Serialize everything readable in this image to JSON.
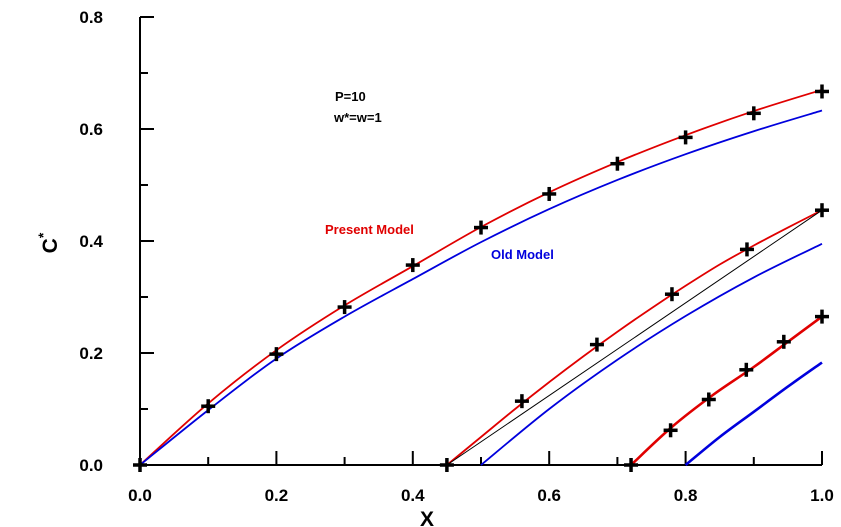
{
  "chart_data": {
    "type": "line",
    "xlabel": "X",
    "ylabel": "C",
    "ylabel_sup": "*",
    "xlim": [
      0.0,
      1.0
    ],
    "ylim": [
      0.0,
      0.8
    ],
    "x_ticks": [
      "0.0",
      "0.2",
      "0.4",
      "0.6",
      "0.8",
      "1.0"
    ],
    "y_ticks": [
      "0.0",
      "0.2",
      "0.4",
      "0.6",
      "0.8"
    ],
    "grid": false,
    "annotations": [
      "P=10",
      "w*=w=1"
    ],
    "series": [
      {
        "name": "Present Model",
        "color": "#e00000",
        "group": 1,
        "x": [
          0.0,
          0.1,
          0.2,
          0.3,
          0.4,
          0.5,
          0.6,
          0.7,
          0.8,
          0.9,
          1.0
        ],
        "y": [
          0.0,
          0.11,
          0.205,
          0.285,
          0.355,
          0.425,
          0.487,
          0.541,
          0.589,
          0.632,
          0.67
        ]
      },
      {
        "name": "Old Model",
        "color": "#0000dd",
        "group": 1,
        "x": [
          0.0,
          0.1,
          0.2,
          0.3,
          0.4,
          0.5,
          0.6,
          0.7,
          0.8,
          0.9,
          1.0
        ],
        "y": [
          0.0,
          0.098,
          0.19,
          0.265,
          0.332,
          0.398,
          0.457,
          0.509,
          0.555,
          0.596,
          0.633
        ]
      },
      {
        "color": "#e00000",
        "group": 2,
        "x": [
          0.45,
          0.5,
          0.55,
          0.6,
          0.65,
          0.7,
          0.75,
          0.8,
          0.85,
          0.9,
          0.95,
          1.0
        ],
        "y": [
          0.0,
          0.05,
          0.1,
          0.148,
          0.194,
          0.238,
          0.28,
          0.32,
          0.358,
          0.392,
          0.424,
          0.455
        ]
      },
      {
        "color": "#000000",
        "group": 2,
        "x": [
          0.45,
          1.0
        ],
        "y": [
          0.0,
          0.455
        ]
      },
      {
        "color": "#0000dd",
        "group": 2,
        "x": [
          0.5,
          0.6,
          0.7,
          0.8,
          0.9,
          1.0
        ],
        "y": [
          0.0,
          0.1,
          0.188,
          0.266,
          0.335,
          0.395
        ]
      },
      {
        "color": "#e00000",
        "group": 3,
        "x": [
          0.72,
          0.78,
          0.84,
          0.9,
          0.95,
          1.0
        ],
        "y": [
          0.0,
          0.068,
          0.125,
          0.175,
          0.22,
          0.265
        ]
      },
      {
        "color": "#0000dd",
        "group": 3,
        "x": [
          0.8,
          0.85,
          0.9,
          0.95,
          1.0
        ],
        "y": [
          0.0,
          0.05,
          0.095,
          0.14,
          0.183
        ]
      }
    ],
    "markers": {
      "symbol": "+",
      "color": "#000000",
      "points": [
        [
          0.0,
          0.0
        ],
        [
          0.1,
          0.105
        ],
        [
          0.2,
          0.198
        ],
        [
          0.3,
          0.282
        ],
        [
          0.4,
          0.357
        ],
        [
          0.5,
          0.424
        ],
        [
          0.6,
          0.484
        ],
        [
          0.7,
          0.538
        ],
        [
          0.8,
          0.585
        ],
        [
          0.9,
          0.628
        ],
        [
          1.0,
          0.667
        ],
        [
          0.45,
          0.0
        ],
        [
          0.56,
          0.114
        ],
        [
          0.67,
          0.215
        ],
        [
          0.78,
          0.305
        ],
        [
          0.89,
          0.385
        ],
        [
          1.0,
          0.455
        ],
        [
          0.72,
          0.0
        ],
        [
          0.778,
          0.062
        ],
        [
          0.834,
          0.117
        ],
        [
          0.889,
          0.17
        ],
        [
          0.944,
          0.22
        ],
        [
          1.0,
          0.265
        ]
      ]
    },
    "series_labels": [
      {
        "text": "Present Model",
        "color": "#e00000"
      },
      {
        "text": "Old Model",
        "color": "#0000dd"
      }
    ]
  }
}
